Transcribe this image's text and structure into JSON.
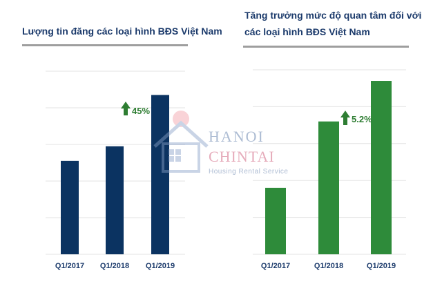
{
  "chart_data": [
    {
      "type": "bar",
      "title": "Lượng tin đăng các loại hình BĐS Việt Nam",
      "categories": [
        "Q1/2017",
        "Q1/2018",
        "Q1/2019"
      ],
      "values": [
        51,
        59,
        87
      ],
      "ylim": [
        0,
        100
      ],
      "grid": true,
      "color": "#0b3361",
      "annotation": {
        "text": "45%",
        "icon": "up-arrow-icon",
        "color": "#2e7d32"
      }
    },
    {
      "type": "bar",
      "title": [
        "Tăng trưởng mức độ quan tâm đối với",
        "các loại hình BĐS Việt Nam"
      ],
      "categories": [
        "Q1/2017",
        "Q1/2018",
        "Q1/2019"
      ],
      "values": [
        36,
        72,
        94
      ],
      "ylim": [
        0,
        100
      ],
      "grid": true,
      "color": "#2e8b3a",
      "annotation": {
        "text": "5.2%",
        "icon": "up-arrow-icon",
        "color": "#2e7d32"
      }
    }
  ],
  "watermark": {
    "line1": "HANOI",
    "line2": "CHINTAI",
    "tagline": "Housing Rental Service"
  }
}
